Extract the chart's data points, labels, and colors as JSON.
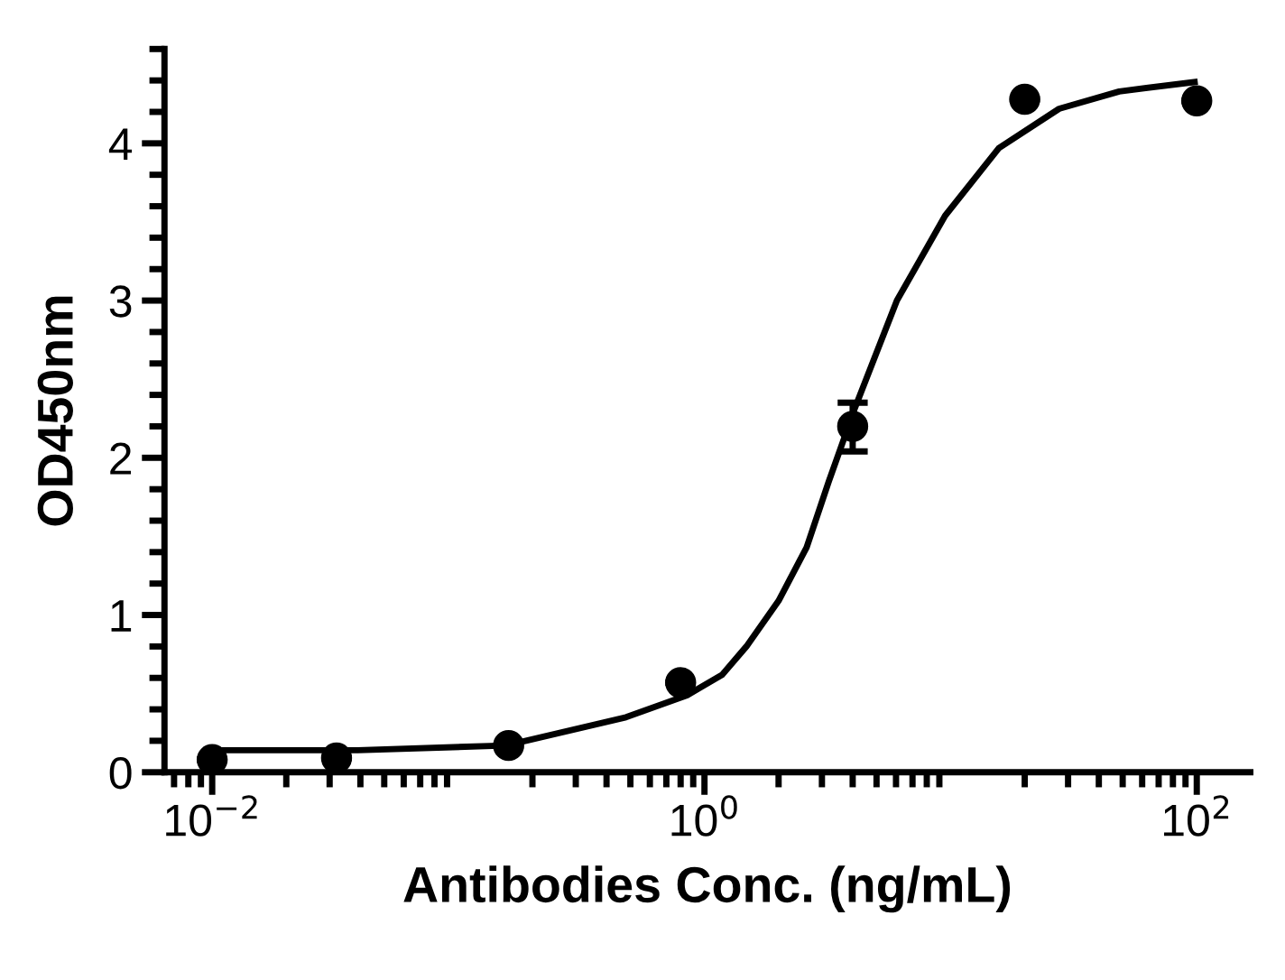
{
  "chart_data": {
    "type": "scatter",
    "xlabel": "Antibodies Conc. (ng/mL)",
    "ylabel": "OD450nm",
    "log": "x",
    "xlim": [
      0.0064,
      165
    ],
    "xticks": [
      {
        "value": 0.01,
        "label": "10$^{−2}$"
      },
      {
        "value": 1,
        "label": "10$^{0}$"
      },
      {
        "value": 100,
        "label": "10$^{2}$"
      }
    ],
    "ylim": [
      0,
      4.6
    ],
    "yticks": [
      0,
      1,
      2,
      3,
      4
    ],
    "grid": false,
    "series": [
      {
        "color": "#000000",
        "marker": "circle",
        "x": [
          0.01,
          0.032,
          0.16,
          0.8,
          4,
          20,
          100
        ],
        "values": [
          0.08,
          0.09,
          0.17,
          0.57,
          2.2,
          4.28,
          4.27
        ],
        "errors": [
          null,
          null,
          null,
          null,
          [
            2.04,
            2.35
          ],
          null,
          null
        ]
      },
      {
        "type": "line",
        "color": "#000000",
        "line_style": "solid",
        "x": [
          0.01,
          0.039,
          0.156,
          0.48,
          0.85,
          1.18,
          1.48,
          2.0,
          2.6,
          3.2,
          4.07,
          6.05,
          9.5,
          15.7,
          27.6,
          48.4,
          98
        ],
        "values": [
          0.14,
          0.14,
          0.17,
          0.35,
          0.49,
          0.62,
          0.8,
          1.09,
          1.43,
          1.85,
          2.31,
          3.0,
          3.54,
          3.97,
          4.22,
          4.33,
          4.39
        ]
      }
    ]
  }
}
